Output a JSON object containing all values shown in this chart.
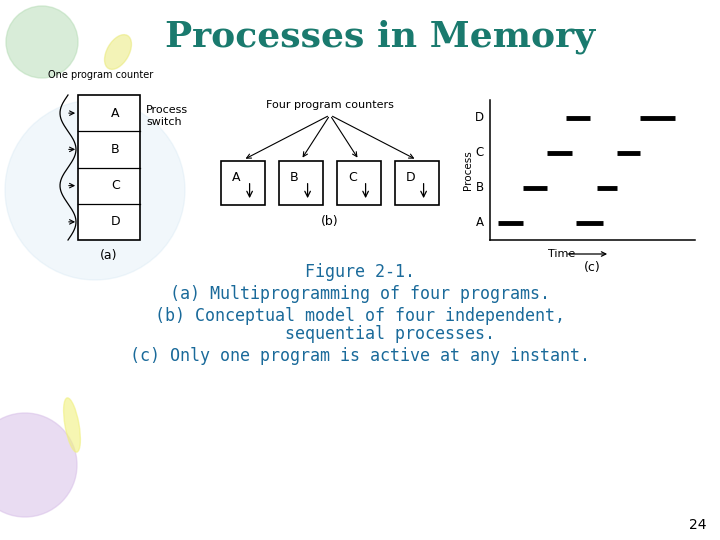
{
  "title": "Processes in Memory",
  "title_color": "#1a7a6e",
  "bg_color": "#ffffff",
  "figure_caption_line1": "Figure 2-1.",
  "figure_caption_line2": "(a) Multiprogramming of four programs.",
  "figure_caption_line3": "(b) Conceptual model of four independent,",
  "figure_caption_line3b": "      sequential processes.",
  "figure_caption_line4": "(c) Only one program is active at any instant.",
  "caption_color": "#1a6a9a",
  "page_number": "24",
  "panel_a_label": "(a)",
  "panel_b_label": "(b)",
  "panel_c_label": "(c)",
  "programs": [
    "A",
    "B",
    "C",
    "D"
  ],
  "one_counter_label": "One program counter",
  "four_counters_label": "Four program counters",
  "process_switch_label": "Process\nswitch",
  "time_label": "Time",
  "process_label": "Process",
  "timeline_segs": [
    [
      0,
      0.04,
      0.16
    ],
    [
      0,
      0.42,
      0.55
    ],
    [
      1,
      0.16,
      0.28
    ],
    [
      1,
      0.52,
      0.62
    ],
    [
      2,
      0.28,
      0.4
    ],
    [
      2,
      0.62,
      0.73
    ],
    [
      3,
      0.37,
      0.49
    ],
    [
      3,
      0.73,
      0.9
    ]
  ]
}
